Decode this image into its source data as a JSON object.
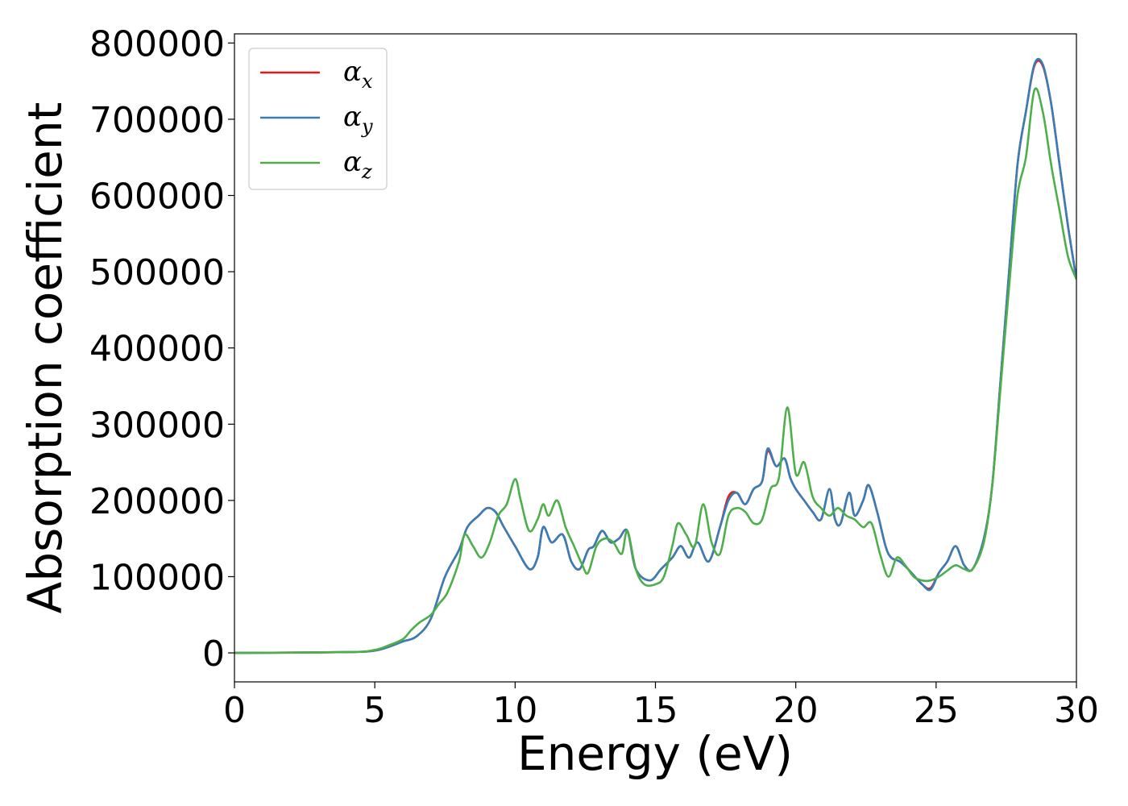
{
  "chart_data": {
    "type": "line",
    "xlabel": "Energy (eV)",
    "ylabel": "Absorption coefficient",
    "xlim": [
      0,
      30
    ],
    "ylim": [
      -38000,
      812000
    ],
    "xticks": [
      "0",
      "5",
      "10",
      "15",
      "20",
      "25",
      "30"
    ],
    "yticks": [
      "0",
      "100000",
      "200000",
      "300000",
      "400000",
      "500000",
      "600000",
      "700000",
      "800000"
    ],
    "legend": {
      "position": "top-left"
    },
    "series": [
      {
        "name": "x",
        "color": "#e41a1c",
        "x": [
          0,
          4,
          5,
          5.5,
          6,
          6.5,
          7,
          7.5,
          8,
          8.3,
          8.7,
          9,
          9.3,
          9.6,
          10,
          10.5,
          10.8,
          11,
          11.3,
          11.7,
          12,
          12.3,
          12.6,
          12.8,
          13.1,
          13.4,
          13.7,
          14,
          14.3,
          14.8,
          15.2,
          15.6,
          15.9,
          16.2,
          16.5,
          16.9,
          17.3,
          17.6,
          17.9,
          18.2,
          18.5,
          18.8,
          19,
          19.3,
          19.6,
          19.8,
          20,
          20.3,
          20.6,
          20.9,
          21.2,
          21.4,
          21.6,
          21.9,
          22.1,
          22.4,
          22.6,
          22.9,
          23.2,
          23.4,
          23.7,
          24,
          24.5,
          24.8,
          25.1,
          25.4,
          25.7,
          26,
          26.3,
          26.7,
          27,
          27.3,
          27.6,
          27.9,
          28.2,
          28.5,
          28.8,
          29.1,
          29.4,
          29.7,
          30
        ],
        "y": [
          0,
          1000,
          3000,
          8000,
          15000,
          22000,
          45000,
          100000,
          135000,
          165000,
          180000,
          190000,
          185000,
          165000,
          140000,
          110000,
          125000,
          165000,
          145000,
          155000,
          120000,
          110000,
          135000,
          140000,
          160000,
          145000,
          150000,
          160000,
          110000,
          95000,
          110000,
          125000,
          140000,
          125000,
          145000,
          120000,
          165000,
          205000,
          210000,
          195000,
          215000,
          225000,
          265000,
          245000,
          255000,
          230000,
          215000,
          200000,
          185000,
          175000,
          215000,
          175000,
          170000,
          210000,
          180000,
          200000,
          220000,
          185000,
          140000,
          125000,
          120000,
          110000,
          90000,
          85000,
          105000,
          120000,
          140000,
          115000,
          110000,
          150000,
          220000,
          360000,
          500000,
          640000,
          710000,
          770000,
          770000,
          720000,
          640000,
          560000,
          490000
        ]
      },
      {
        "name": "y",
        "color": "#377eb8",
        "x": [
          0,
          4,
          5,
          5.5,
          6,
          6.5,
          7,
          7.5,
          8,
          8.3,
          8.7,
          9,
          9.3,
          9.6,
          10,
          10.5,
          10.8,
          11,
          11.3,
          11.7,
          12,
          12.3,
          12.6,
          12.8,
          13.1,
          13.4,
          13.7,
          14,
          14.3,
          14.8,
          15.2,
          15.6,
          15.9,
          16.2,
          16.5,
          16.9,
          17.3,
          17.6,
          17.9,
          18.2,
          18.5,
          18.8,
          19,
          19.3,
          19.6,
          19.8,
          20,
          20.3,
          20.6,
          20.9,
          21.2,
          21.4,
          21.6,
          21.9,
          22.1,
          22.4,
          22.6,
          22.9,
          23.2,
          23.4,
          23.7,
          24,
          24.5,
          24.8,
          25.1,
          25.4,
          25.7,
          26,
          26.3,
          26.7,
          27,
          27.3,
          27.6,
          27.9,
          28.2,
          28.5,
          28.8,
          29.1,
          29.4,
          29.7,
          30
        ],
        "y": [
          0,
          1000,
          3000,
          8000,
          15000,
          22000,
          45000,
          100000,
          135000,
          165000,
          180000,
          190000,
          185000,
          165000,
          140000,
          110000,
          125000,
          165000,
          145000,
          155000,
          120000,
          110000,
          135000,
          140000,
          160000,
          145000,
          150000,
          160000,
          110000,
          95000,
          110000,
          125000,
          140000,
          125000,
          145000,
          120000,
          165000,
          200000,
          210000,
          195000,
          215000,
          225000,
          268000,
          245000,
          255000,
          230000,
          215000,
          200000,
          185000,
          175000,
          215000,
          175000,
          170000,
          210000,
          180000,
          200000,
          220000,
          185000,
          140000,
          125000,
          120000,
          110000,
          90000,
          83000,
          105000,
          120000,
          140000,
          115000,
          110000,
          150000,
          220000,
          360000,
          500000,
          640000,
          710000,
          772000,
          772000,
          720000,
          640000,
          560000,
          490000
        ]
      },
      {
        "name": "z",
        "color": "#4daf4a",
        "x": [
          0,
          4,
          5,
          5.5,
          6,
          6.3,
          6.6,
          7,
          7.3,
          7.6,
          8,
          8.2,
          8.5,
          8.8,
          9.1,
          9.4,
          9.7,
          10,
          10.2,
          10.5,
          10.8,
          11,
          11.2,
          11.5,
          11.8,
          12.1,
          12.4,
          12.6,
          12.9,
          13.2,
          13.5,
          13.8,
          14,
          14.3,
          14.6,
          15,
          15.3,
          15.6,
          15.8,
          16.1,
          16.4,
          16.7,
          17,
          17.3,
          17.6,
          17.9,
          18.2,
          18.5,
          18.8,
          19.1,
          19.4,
          19.7,
          20,
          20.3,
          20.6,
          20.9,
          21.2,
          21.5,
          21.8,
          22.1,
          22.4,
          22.7,
          23,
          23.3,
          23.6,
          23.9,
          24.2,
          24.5,
          24.8,
          25.1,
          25.4,
          25.7,
          26,
          26.3,
          26.7,
          27,
          27.3,
          27.6,
          27.9,
          28.2,
          28.5,
          28.8,
          29.1,
          29.4,
          29.7,
          30
        ],
        "y": [
          0,
          1000,
          4000,
          10000,
          18000,
          30000,
          40000,
          50000,
          65000,
          80000,
          120000,
          155000,
          140000,
          125000,
          145000,
          180000,
          195000,
          228000,
          200000,
          160000,
          175000,
          195000,
          180000,
          200000,
          165000,
          140000,
          115000,
          105000,
          140000,
          150000,
          145000,
          130000,
          160000,
          110000,
          90000,
          90000,
          100000,
          140000,
          170000,
          155000,
          140000,
          195000,
          145000,
          130000,
          180000,
          190000,
          185000,
          170000,
          175000,
          215000,
          230000,
          322000,
          235000,
          250000,
          205000,
          190000,
          180000,
          190000,
          180000,
          175000,
          165000,
          170000,
          130000,
          100000,
          125000,
          115000,
          100000,
          95000,
          95000,
          100000,
          108000,
          115000,
          110000,
          110000,
          145000,
          220000,
          350000,
          480000,
          600000,
          650000,
          738000,
          710000,
          640000,
          580000,
          520000,
          490000
        ]
      }
    ]
  }
}
